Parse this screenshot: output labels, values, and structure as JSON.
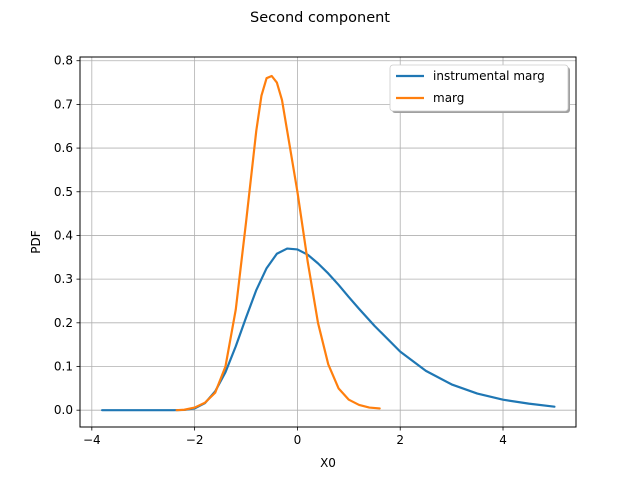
{
  "chart_data": {
    "type": "line",
    "title": "Second component",
    "xlabel": "X0",
    "ylabel": "PDF",
    "xlim": [
      -4.23,
      5.42
    ],
    "ylim": [
      -0.0385,
      0.8085
    ],
    "xticks": [
      -4,
      -2,
      0,
      2,
      4
    ],
    "xtick_labels": [
      "−4",
      "−2",
      "0",
      "2",
      "4"
    ],
    "yticks": [
      0.0,
      0.1,
      0.2,
      0.3,
      0.4,
      0.5,
      0.6,
      0.7,
      0.8
    ],
    "ytick_labels": [
      "0.0",
      "0.1",
      "0.2",
      "0.3",
      "0.4",
      "0.5",
      "0.6",
      "0.7",
      "0.8"
    ],
    "grid": true,
    "legend_position": "top-right",
    "series": [
      {
        "name": "instrumental marg",
        "color": "#1f77b4",
        "x": [
          -3.8,
          -3.4,
          -3.0,
          -2.6,
          -2.4,
          -2.2,
          -2.0,
          -1.8,
          -1.6,
          -1.4,
          -1.2,
          -1.0,
          -0.8,
          -0.6,
          -0.4,
          -0.2,
          0.0,
          0.2,
          0.4,
          0.6,
          0.8,
          1.0,
          1.2,
          1.5,
          2.0,
          2.5,
          3.0,
          3.5,
          4.0,
          4.5,
          5.0
        ],
        "y": [
          0.0,
          0.0,
          0.0,
          0.0,
          0.0,
          0.0005,
          0.004,
          0.016,
          0.043,
          0.087,
          0.146,
          0.212,
          0.275,
          0.325,
          0.358,
          0.37,
          0.368,
          0.356,
          0.336,
          0.313,
          0.287,
          0.259,
          0.232,
          0.193,
          0.134,
          0.09,
          0.059,
          0.038,
          0.024,
          0.015,
          0.008
        ]
      },
      {
        "name": "marg",
        "color": "#ff7f0e",
        "x": [
          -2.35,
          -2.2,
          -2.0,
          -1.8,
          -1.6,
          -1.4,
          -1.2,
          -1.0,
          -0.8,
          -0.7,
          -0.6,
          -0.5,
          -0.4,
          -0.3,
          -0.2,
          -0.1,
          0.0,
          0.1,
          0.2,
          0.3,
          0.4,
          0.6,
          0.8,
          1.0,
          1.2,
          1.4,
          1.6
        ],
        "y": [
          0.0,
          0.001,
          0.006,
          0.017,
          0.04,
          0.1,
          0.23,
          0.43,
          0.64,
          0.72,
          0.76,
          0.765,
          0.75,
          0.71,
          0.64,
          0.57,
          0.5,
          0.42,
          0.34,
          0.27,
          0.2,
          0.105,
          0.05,
          0.024,
          0.012,
          0.006,
          0.004
        ]
      }
    ]
  }
}
